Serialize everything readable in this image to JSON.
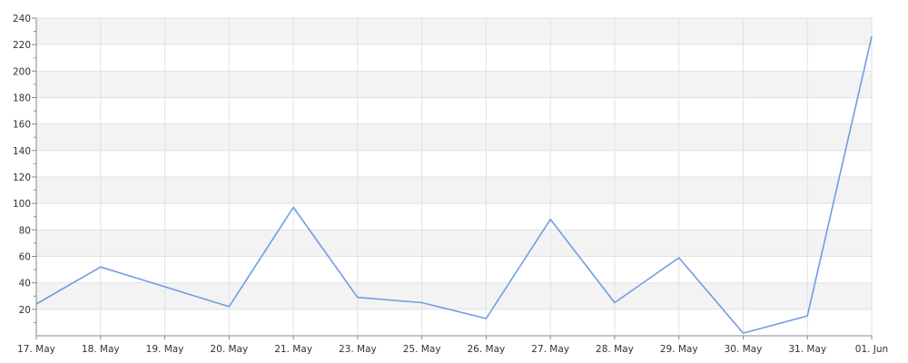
{
  "chart_data": {
    "type": "line",
    "title": "",
    "xlabel": "",
    "ylabel": "",
    "categories": [
      "17. May",
      "18. May",
      "19. May",
      "20. May",
      "21. May",
      "23. May",
      "25. May",
      "26. May",
      "27. May",
      "28. May",
      "29. May",
      "30. May",
      "31. May",
      "01. Jun"
    ],
    "series": [
      {
        "values": [
          24,
          52,
          37,
          22,
          97,
          29,
          25,
          13,
          88,
          25,
          59,
          2,
          15,
          226
        ]
      }
    ],
    "ylim": [
      0,
      240
    ],
    "yticks": [
      20,
      40,
      60,
      80,
      100,
      120,
      140,
      160,
      180,
      200,
      220,
      240
    ],
    "grid": true,
    "legend": "none",
    "colors": {
      "line": "#6f9ee0",
      "band": "#f3f3f3",
      "grid": "#e2e2e2",
      "axis": "#888888",
      "text": "#333333"
    }
  }
}
